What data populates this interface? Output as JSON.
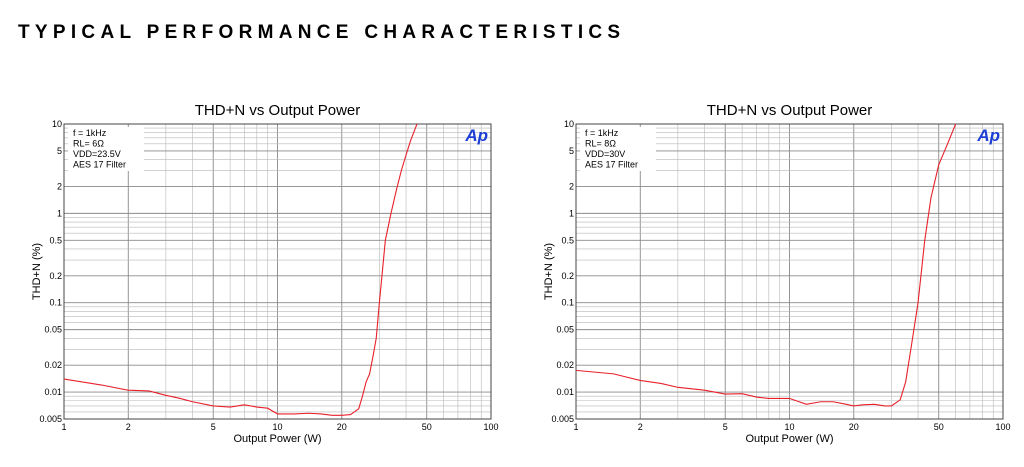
{
  "page": {
    "heading": "TYPICAL PERFORMANCE CHARACTERISTICS"
  },
  "colors": {
    "trace": "#e8202a",
    "major_grid": "#8a8a8a",
    "minor_grid": "#b8b8b8",
    "logo": "#1e3fd6"
  },
  "chart_data": [
    {
      "type": "line",
      "title": "THD+N vs Output Power",
      "xlabel": "Output Power (W)",
      "ylabel": "THD+N (%)",
      "x_scale": "log",
      "y_scale": "log",
      "xlim": [
        1,
        100
      ],
      "ylim": [
        0.005,
        10
      ],
      "x_ticks": [
        1,
        2,
        5,
        10,
        20,
        50,
        100
      ],
      "x_tick_labels": [
        "1",
        "2",
        "5",
        "10",
        "20",
        "50",
        "100"
      ],
      "y_ticks": [
        0.005,
        0.01,
        0.02,
        0.05,
        0.1,
        0.2,
        0.5,
        1,
        2,
        5,
        10
      ],
      "y_tick_labels": [
        "0.005",
        "0.01",
        "0.02",
        "0.05",
        "0.1",
        "0.2",
        "0.5",
        "1",
        "2",
        "5",
        "10"
      ],
      "grid": true,
      "annotations": [
        "f = 1kHz",
        "RL= 6Ω",
        "VDD=23.5V",
        "AES 17 Filter"
      ],
      "logo": "Ap",
      "series": [
        {
          "x": [
            1,
            1.5,
            2,
            2.5,
            3,
            3.5,
            4,
            5,
            6,
            7,
            8,
            9,
            10,
            12,
            14,
            16,
            18,
            20,
            22,
            24,
            25,
            26,
            27,
            28,
            29,
            30,
            32,
            34,
            36,
            38,
            40,
            42,
            45
          ],
          "y": [
            0.014,
            0.012,
            0.0105,
            0.0103,
            0.0092,
            0.0085,
            0.0078,
            0.007,
            0.0068,
            0.0072,
            0.0068,
            0.0066,
            0.0057,
            0.0057,
            0.0058,
            0.0057,
            0.0055,
            0.0055,
            0.0056,
            0.0065,
            0.009,
            0.013,
            0.016,
            0.025,
            0.04,
            0.1,
            0.5,
            1.0,
            1.8,
            3.0,
            4.5,
            6.5,
            10
          ]
        }
      ]
    },
    {
      "type": "line",
      "title": "THD+N vs Output Power",
      "xlabel": "Output Power (W)",
      "ylabel": "THD+N (%)",
      "x_scale": "log",
      "y_scale": "log",
      "xlim": [
        1,
        100
      ],
      "ylim": [
        0.005,
        10
      ],
      "x_ticks": [
        1,
        2,
        5,
        10,
        20,
        50,
        100
      ],
      "x_tick_labels": [
        "1",
        "2",
        "5",
        "10",
        "20",
        "50",
        "100"
      ],
      "y_ticks": [
        0.005,
        0.01,
        0.02,
        0.05,
        0.1,
        0.2,
        0.5,
        1,
        2,
        5,
        10
      ],
      "y_tick_labels": [
        "0.005",
        "0.01",
        "0.02",
        "0.05",
        "0.1",
        "0.2",
        "0.5",
        "1",
        "2",
        "5",
        "10"
      ],
      "grid": true,
      "annotations": [
        "f = 1kHz",
        "RL= 8Ω",
        "VDD=30V",
        "AES 17 Filter"
      ],
      "logo": "Ap",
      "series": [
        {
          "x": [
            1,
            1.5,
            2,
            2.5,
            3,
            4,
            5,
            6,
            7,
            8,
            10,
            12,
            14,
            16,
            18,
            20,
            22,
            25,
            28,
            30,
            33,
            35,
            37,
            40,
            43,
            46,
            50,
            55,
            60
          ],
          "y": [
            0.0175,
            0.016,
            0.0135,
            0.0125,
            0.0113,
            0.0105,
            0.0095,
            0.0096,
            0.0088,
            0.0085,
            0.0085,
            0.0073,
            0.0078,
            0.0078,
            0.0074,
            0.007,
            0.0072,
            0.0073,
            0.007,
            0.007,
            0.0082,
            0.013,
            0.03,
            0.1,
            0.5,
            1.5,
            3.5,
            6.0,
            10
          ]
        }
      ]
    }
  ]
}
